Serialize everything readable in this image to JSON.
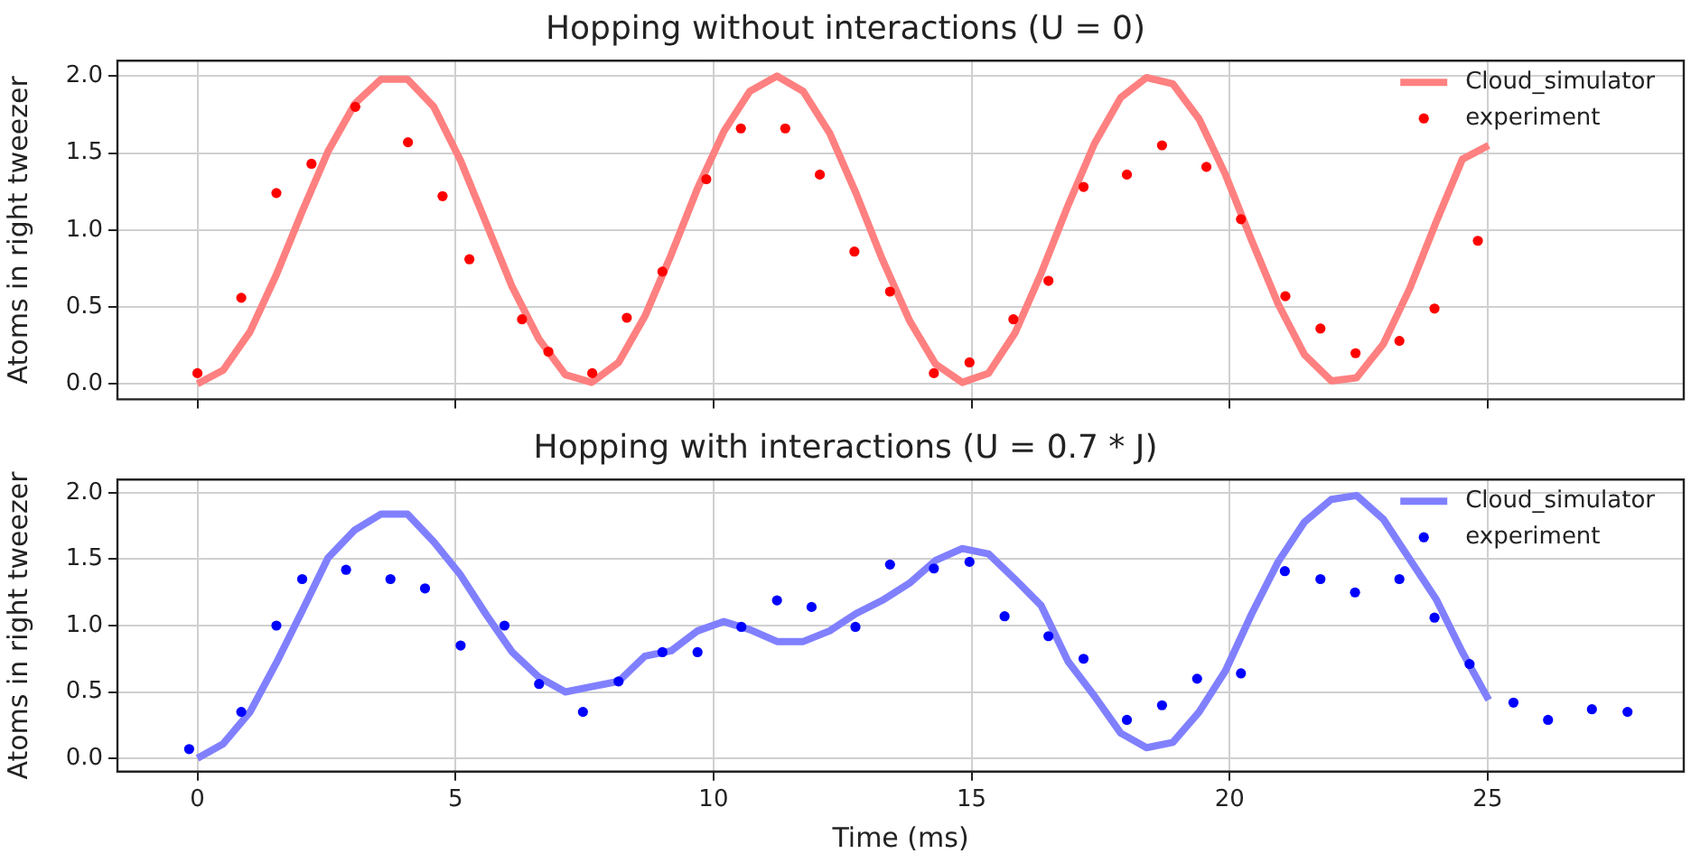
{
  "chart_data": [
    {
      "type": "line",
      "title": "Hopping without interactions (U = 0)",
      "ylabel": "Atoms in right tweezer",
      "xlim": [
        -1.55,
        28.8
      ],
      "xticks": [
        0,
        5,
        10,
        15,
        20,
        25
      ],
      "ylim": [
        -0.1,
        2.1
      ],
      "yticks": [
        {
          "value": 0,
          "label": "0.0"
        },
        {
          "value": 0.5,
          "label": "0.5"
        },
        {
          "value": 1,
          "label": "1.0"
        },
        {
          "value": 1.5,
          "label": "1.5"
        },
        {
          "value": 2,
          "label": "2.0"
        }
      ],
      "tick_labels": "y",
      "grid": true,
      "legend": "top right",
      "series": [
        {
          "name": "Cloud_simulator",
          "type": "line",
          "marker": "none",
          "color": "#ff8080",
          "x": [
            0,
            0.5,
            1.02,
            1.53,
            2.03,
            2.53,
            3.05,
            3.56,
            4.07,
            4.58,
            5.1,
            5.6,
            6.1,
            6.62,
            7.13,
            7.64,
            8.16,
            8.67,
            9.18,
            9.69,
            10.2,
            10.7,
            11.23,
            11.74,
            12.25,
            12.76,
            13.27,
            13.8,
            14.3,
            14.82,
            15.33,
            15.84,
            16.35,
            16.87,
            17.38,
            17.89,
            18.39,
            18.9,
            19.41,
            19.92,
            20.43,
            20.94,
            21.45,
            21.97,
            22.46,
            22.98,
            23.49,
            24.0,
            24.51,
            25.02
          ],
          "values": [
            0,
            0.09,
            0.34,
            0.71,
            1.12,
            1.51,
            1.82,
            1.98,
            1.98,
            1.8,
            1.45,
            1.04,
            0.63,
            0.29,
            0.06,
            0.01,
            0.14,
            0.44,
            0.84,
            1.27,
            1.64,
            1.9,
            2.0,
            1.9,
            1.63,
            1.24,
            0.81,
            0.41,
            0.13,
            0.01,
            0.07,
            0.33,
            0.72,
            1.16,
            1.56,
            1.86,
            1.99,
            1.95,
            1.72,
            1.36,
            0.93,
            0.52,
            0.19,
            0.02,
            0.04,
            0.26,
            0.62,
            1.05,
            1.46,
            1.55
          ]
        },
        {
          "name": "experiment",
          "type": "scatter",
          "marker": "circle",
          "color": "#ff0000",
          "x": [
            0,
            0.85,
            1.53,
            2.21,
            3.06,
            4.08,
            4.75,
            5.27,
            6.29,
            6.8,
            7.65,
            8.32,
            9.01,
            9.86,
            10.53,
            11.39,
            12.06,
            12.73,
            13.42,
            14.27,
            14.96,
            15.81,
            16.49,
            17.17,
            18.01,
            18.69,
            19.55,
            20.22,
            21.08,
            21.76,
            22.44,
            23.29,
            23.97,
            24.81
          ],
          "values": [
            0.07,
            0.56,
            1.24,
            1.43,
            1.8,
            1.57,
            1.22,
            0.81,
            0.42,
            0.21,
            0.07,
            0.43,
            0.73,
            1.33,
            1.66,
            1.66,
            1.36,
            0.86,
            0.6,
            0.07,
            0.14,
            0.42,
            0.67,
            1.28,
            1.36,
            1.55,
            1.41,
            1.07,
            0.57,
            0.36,
            0.2,
            0.28,
            0.49,
            0.93
          ]
        }
      ]
    },
    {
      "type": "line",
      "title": "Hopping with interactions (U = 0.7 * J)",
      "xlabel": "Time (ms)",
      "ylabel": "Atoms in right tweezer",
      "xlim": [
        -1.55,
        28.8
      ],
      "xticks": [
        0,
        5,
        10,
        15,
        20,
        25
      ],
      "ylim": [
        -0.1,
        2.1
      ],
      "yticks": [
        {
          "value": 0,
          "label": "0.0"
        },
        {
          "value": 0.5,
          "label": "0.5"
        },
        {
          "value": 1,
          "label": "1.0"
        },
        {
          "value": 1.5,
          "label": "1.5"
        },
        {
          "value": 2,
          "label": "2.0"
        }
      ],
      "grid": true,
      "legend": "top right",
      "series": [
        {
          "name": "Cloud_simulator",
          "type": "line",
          "marker": "none",
          "color": "#8080ff",
          "x": [
            0,
            0.5,
            1.02,
            1.53,
            2.03,
            2.53,
            3.05,
            3.56,
            4.07,
            4.58,
            5.1,
            5.6,
            6.1,
            6.62,
            7.13,
            7.64,
            8.16,
            8.67,
            9.18,
            9.69,
            10.2,
            10.7,
            11.23,
            11.74,
            12.25,
            12.76,
            13.27,
            13.8,
            14.3,
            14.82,
            15.33,
            15.84,
            16.35,
            16.87,
            17.38,
            17.89,
            18.39,
            18.9,
            19.41,
            19.92,
            20.43,
            20.94,
            21.45,
            21.97,
            22.46,
            22.98,
            23.49,
            24.0,
            24.51,
            25.02
          ],
          "values": [
            0,
            0.11,
            0.35,
            0.72,
            1.11,
            1.51,
            1.72,
            1.84,
            1.84,
            1.63,
            1.38,
            1.08,
            0.8,
            0.61,
            0.5,
            0.54,
            0.58,
            0.77,
            0.81,
            0.96,
            1.03,
            0.97,
            0.88,
            0.88,
            0.96,
            1.09,
            1.19,
            1.32,
            1.49,
            1.58,
            1.54,
            1.35,
            1.15,
            0.73,
            0.47,
            0.19,
            0.08,
            0.12,
            0.35,
            0.66,
            1.09,
            1.48,
            1.78,
            1.95,
            1.98,
            1.8,
            1.5,
            1.2,
            0.8,
            0.44
          ]
        },
        {
          "name": "experiment",
          "type": "scatter",
          "marker": "circle",
          "color": "#0000ff",
          "x": [
            -0.16,
            0.85,
            1.53,
            2.03,
            2.88,
            3.74,
            4.41,
            5.1,
            5.95,
            6.62,
            7.47,
            8.16,
            9.01,
            9.69,
            10.54,
            11.23,
            11.9,
            12.75,
            13.42,
            14.27,
            14.96,
            15.64,
            16.49,
            17.17,
            18.01,
            18.69,
            19.37,
            20.22,
            21.07,
            21.76,
            22.43,
            23.29,
            23.97,
            24.65,
            25.5,
            26.17,
            27.02,
            27.71
          ],
          "values": [
            0.07,
            0.35,
            1.0,
            1.35,
            1.42,
            1.35,
            1.28,
            0.85,
            1.0,
            0.56,
            0.35,
            0.58,
            0.8,
            0.8,
            0.99,
            1.19,
            1.14,
            0.99,
            1.46,
            1.43,
            1.48,
            1.07,
            0.92,
            0.75,
            0.29,
            0.4,
            0.6,
            0.64,
            1.41,
            1.35,
            1.25,
            1.35,
            1.06,
            0.71,
            0.42,
            0.29,
            0.37,
            0.35
          ]
        }
      ]
    }
  ]
}
